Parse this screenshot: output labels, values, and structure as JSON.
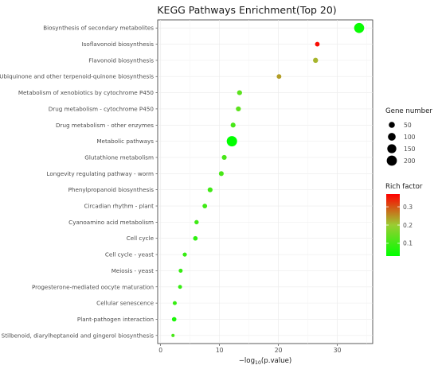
{
  "chart_data": {
    "type": "scatter",
    "title": "KEGG Pathways Enrichment(Top 20)",
    "xlabel_prefix": "−log",
    "xlabel_sub": "10",
    "xlabel_suffix": "(p.value)",
    "ylabel": "",
    "xlim": [
      -0.5,
      36
    ],
    "x_ticks": [
      0,
      10,
      20,
      30
    ],
    "grid": true,
    "legend_placement": "right",
    "size_legend": {
      "title": "Gene number",
      "values": [
        50,
        100,
        150,
        200
      ],
      "labels": [
        "50",
        "100",
        "150",
        "200"
      ]
    },
    "color_legend": {
      "title": "Rich factor",
      "min": 0.03,
      "max": 0.37,
      "ticks": [
        0.1,
        0.2,
        0.3
      ],
      "tick_labels": [
        "0.1",
        "0.2",
        "0.3"
      ],
      "low_color": "#00ff00",
      "mid_color": "#9acd32",
      "high_color": "#ff0000"
    },
    "points": [
      {
        "pathway": "Biosynthesis of secondary metabolites",
        "x": 33.7,
        "gene_number": 195,
        "rich_factor": 0.04
      },
      {
        "pathway": "Isoflavonoid biosynthesis",
        "x": 26.6,
        "gene_number": 22,
        "rich_factor": 0.36
      },
      {
        "pathway": "Flavonoid biosynthesis",
        "x": 26.3,
        "gene_number": 30,
        "rich_factor": 0.22
      },
      {
        "pathway": "Ubiquinone and other terpenoid-quinone biosynthesis",
        "x": 20.1,
        "gene_number": 22,
        "rich_factor": 0.24
      },
      {
        "pathway": "Metabolism of xenobiotics by cytochrome P450",
        "x": 13.4,
        "gene_number": 27,
        "rich_factor": 0.13
      },
      {
        "pathway": "Drug metabolism - cytochrome P450",
        "x": 13.2,
        "gene_number": 27,
        "rich_factor": 0.13
      },
      {
        "pathway": "Drug metabolism - other enzymes",
        "x": 12.3,
        "gene_number": 27,
        "rich_factor": 0.11
      },
      {
        "pathway": "Metabolic pathways",
        "x": 12.1,
        "gene_number": 210,
        "rich_factor": 0.03
      },
      {
        "pathway": "Glutathione metabolism",
        "x": 10.8,
        "gene_number": 26,
        "rich_factor": 0.11
      },
      {
        "pathway": "Longevity regulating pathway - worm",
        "x": 10.3,
        "gene_number": 25,
        "rich_factor": 0.11
      },
      {
        "pathway": "Phenylpropanoid biosynthesis",
        "x": 8.4,
        "gene_number": 27,
        "rich_factor": 0.1
      },
      {
        "pathway": "Circadian rhythm - plant",
        "x": 7.5,
        "gene_number": 22,
        "rich_factor": 0.1
      },
      {
        "pathway": "Cyanoamino acid metabolism",
        "x": 6.1,
        "gene_number": 17,
        "rich_factor": 0.1
      },
      {
        "pathway": "Cell cycle",
        "x": 5.9,
        "gene_number": 20,
        "rich_factor": 0.08
      },
      {
        "pathway": "Cell cycle - yeast",
        "x": 4.1,
        "gene_number": 15,
        "rich_factor": 0.09
      },
      {
        "pathway": "Meiosis - yeast",
        "x": 3.4,
        "gene_number": 13,
        "rich_factor": 0.09
      },
      {
        "pathway": "Progesterone-mediated oocyte maturation",
        "x": 3.3,
        "gene_number": 12,
        "rich_factor": 0.09
      },
      {
        "pathway": "Cellular senescence",
        "x": 2.4,
        "gene_number": 13,
        "rich_factor": 0.09
      },
      {
        "pathway": "Plant-pathogen interaction",
        "x": 2.3,
        "gene_number": 20,
        "rich_factor": 0.06
      },
      {
        "pathway": "Stilbenoid, diarylheptanoid and gingerol biosynthesis",
        "x": 2.1,
        "gene_number": 5,
        "rich_factor": 0.11
      }
    ]
  }
}
